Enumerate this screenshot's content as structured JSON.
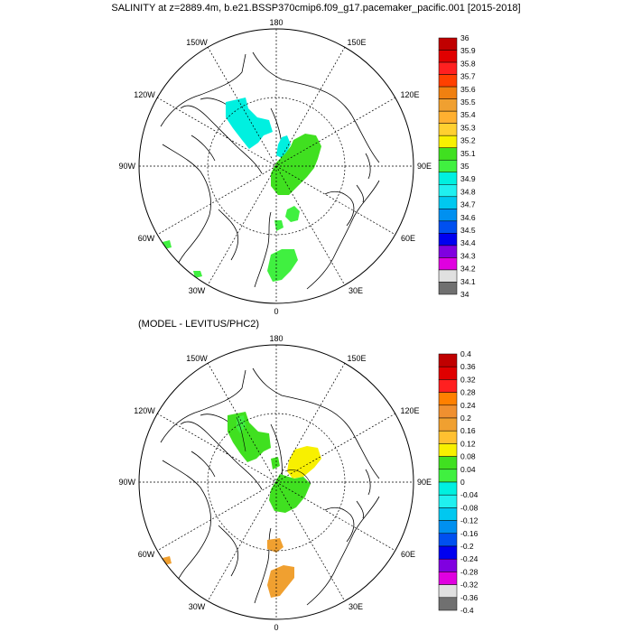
{
  "title": "SALINITY at z=2889.4m, b.e21.BSSP370cmip6.f09_g17.pacemaker_pacific.001 [2015-2018]",
  "subtitle": "(MODEL - LEVITUS/PHC2)",
  "longitude_labels": {
    "top": "180",
    "bottom": "0",
    "left": "90W",
    "right": "90E",
    "upper_left": "150W",
    "upper_right": "150E",
    "mid_upper_left": "120W",
    "mid_upper_right": "120E",
    "mid_lower_left": "60W",
    "mid_lower_right": "60E",
    "lower_left": "30W",
    "lower_right": "30E"
  },
  "colorbar_top": {
    "labels": [
      "36",
      "35.9",
      "35.8",
      "35.7",
      "35.6",
      "35.5",
      "35.4",
      "35.3",
      "35.2",
      "35.1",
      "35",
      "34.9",
      "34.8",
      "34.7",
      "34.6",
      "34.5",
      "34.4",
      "34.3",
      "34.2",
      "34.1",
      "34"
    ],
    "colors": [
      "#c00000",
      "#e00000",
      "#ff2020",
      "#ff4000",
      "#f08010",
      "#f0a030",
      "#ffb030",
      "#ffd030",
      "#f8f000",
      "#40e020",
      "#40f040",
      "#00f0e0",
      "#20f0f0",
      "#00c8f0",
      "#0090f0",
      "#0050f0",
      "#0000f0",
      "#8000e0",
      "#e000e0",
      "#e0e0e0",
      "#707070"
    ]
  },
  "colorbar_bottom": {
    "labels": [
      "0.4",
      "0.36",
      "0.32",
      "0.28",
      "0.24",
      "0.2",
      "0.16",
      "0.12",
      "0.08",
      "0.04",
      "0",
      "-0.04",
      "-0.08",
      "-0.12",
      "-0.16",
      "-0.2",
      "-0.24",
      "-0.28",
      "-0.32",
      "-0.36",
      "-0.4"
    ],
    "colors": [
      "#c00000",
      "#e00000",
      "#ff2020",
      "#ff8000",
      "#f09030",
      "#f0a030",
      "#ffc030",
      "#f8f000",
      "#40e020",
      "#40f040",
      "#00f0e0",
      "#20f0f0",
      "#00c8f0",
      "#0090f0",
      "#0050f0",
      "#0000f0",
      "#8000e0",
      "#e000e0",
      "#e0e0e0",
      "#707070"
    ]
  }
}
